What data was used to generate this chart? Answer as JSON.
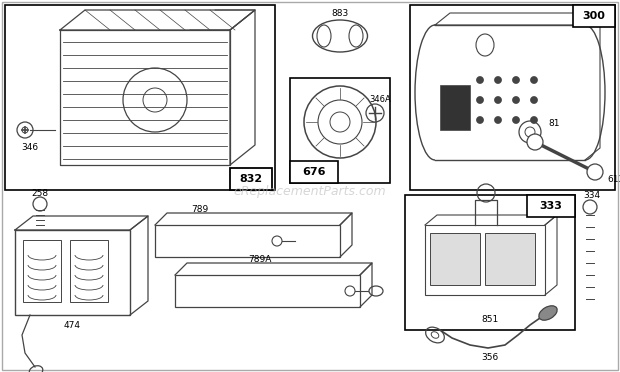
{
  "background_color": "#ffffff",
  "watermark": "eReplacementParts.com",
  "lc": "#444444",
  "bc": "#000000",
  "figsize": [
    6.2,
    3.72
  ],
  "dpi": 100
}
